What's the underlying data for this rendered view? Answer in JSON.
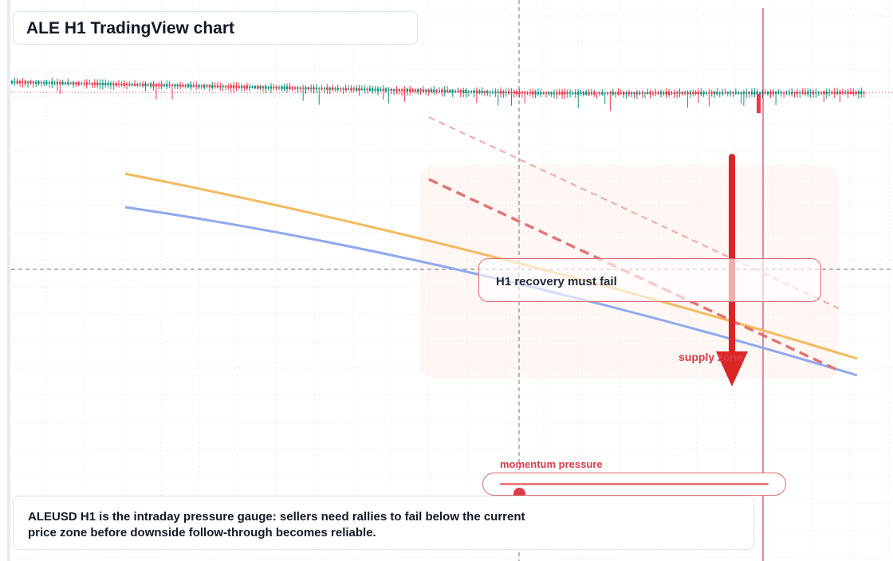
{
  "header": {
    "title": "ALE H1 TradingView chart"
  },
  "callout": {
    "text": "H1 recovery must fail"
  },
  "zone": {
    "label": "supply zone"
  },
  "gauge": {
    "label": "momentum pressure",
    "level": 0.07
  },
  "note": {
    "text": "ALEUSD H1 is the intraday pressure gauge: sellers need rallies to fail below the current price zone before downside follow-through becomes reliable."
  },
  "colors": {
    "bull": "#089981",
    "bear": "#f23645",
    "accent": "#dc3c46",
    "orange_line": "#f5b95f",
    "blue_line": "#8fa8f0",
    "arrow": "#dc2626"
  },
  "icons": {
    "direction": "down-arrow-icon"
  },
  "chart_data": {
    "type": "candlestick",
    "timeframe": "H1",
    "symbol": "ALEUSD",
    "annotations": [
      "H1 recovery must fail",
      "supply zone",
      "momentum pressure"
    ]
  }
}
